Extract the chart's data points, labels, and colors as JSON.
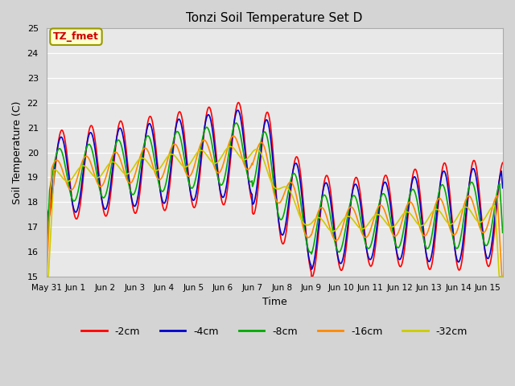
{
  "title": "Tonzi Soil Temperature Set D",
  "xlabel": "Time",
  "ylabel": "Soil Temperature (C)",
  "ylim": [
    15.0,
    25.0
  ],
  "yticks": [
    15.0,
    16.0,
    17.0,
    18.0,
    19.0,
    20.0,
    21.0,
    22.0,
    23.0,
    24.0,
    25.0
  ],
  "annotation_text": "TZ_fmet",
  "annotation_color": "#cc0000",
  "annotation_bg": "#ffffcc",
  "annotation_edge": "#999900",
  "legend_entries": [
    "-2cm",
    "-4cm",
    "-8cm",
    "-16cm",
    "-32cm"
  ],
  "line_colors": [
    "#ff0000",
    "#0000cc",
    "#00aa00",
    "#ff8800",
    "#cccc00"
  ],
  "line_width": 1.2,
  "xtick_labels": [
    "May 31",
    "Jun 1",
    "Jun 2",
    "Jun 3",
    "Jun 4",
    "Jun 5",
    "Jun 6",
    "Jun 7",
    "Jun 8",
    "Jun 9",
    "Jun 10",
    "Jun 11",
    "Jun 12",
    "Jun 13",
    "Jun 14",
    "Jun 15"
  ],
  "fig_bg": "#d4d4d4",
  "ax_bg": "#e8e8e8",
  "grid_color": "#ffffff"
}
